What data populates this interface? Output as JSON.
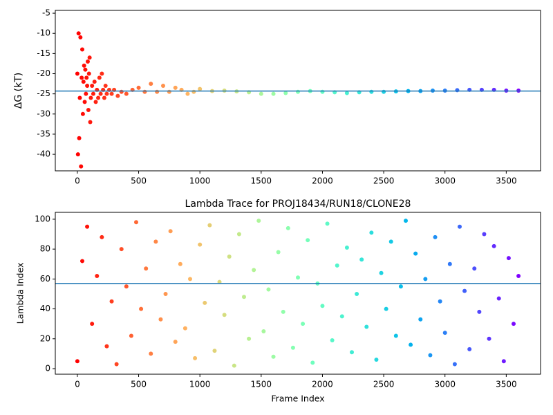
{
  "chart_data": [
    {
      "type": "scatter",
      "ylabel": "ΔG (kT)",
      "colormap": "rainbow_r",
      "x": [
        0,
        5,
        10,
        15,
        20,
        25,
        30,
        35,
        40,
        45,
        50,
        55,
        60,
        65,
        70,
        75,
        80,
        85,
        90,
        95,
        100,
        105,
        110,
        120,
        130,
        140,
        150,
        160,
        170,
        180,
        190,
        200,
        210,
        220,
        230,
        240,
        260,
        280,
        300,
        330,
        360,
        400,
        450,
        500,
        550,
        600,
        650,
        700,
        750,
        800,
        850,
        900,
        950,
        1000,
        1100,
        1200,
        1300,
        1400,
        1500,
        1600,
        1700,
        1800,
        1900,
        2000,
        2100,
        2200,
        2300,
        2400,
        2500,
        2600,
        2700,
        2800,
        2900,
        3000,
        3100,
        3200,
        3300,
        3400,
        3500,
        3600
      ],
      "values": [
        -20,
        -40,
        -10,
        -36,
        -26,
        -11,
        -43,
        -21,
        -14,
        -30,
        -22,
        -18,
        -27,
        -19,
        -25,
        -21,
        -23,
        -17,
        -29,
        -20,
        -16,
        -32,
        -26,
        -23,
        -25,
        -22,
        -27,
        -24,
        -26,
        -21,
        -25,
        -20,
        -24,
        -26,
        -23,
        -25,
        -24,
        -25,
        -24,
        -25.5,
        -24.5,
        -25,
        -24,
        -23.5,
        -24.5,
        -22.5,
        -24.5,
        -23,
        -24.5,
        -23.5,
        -24,
        -25,
        -24.5,
        -23.8,
        -24.3,
        -24.2,
        -24.4,
        -24.6,
        -25,
        -25,
        -24.8,
        -24.5,
        -24.3,
        -24.5,
        -24.6,
        -24.8,
        -24.6,
        -24.5,
        -24.5,
        -24.4,
        -24.3,
        -24.3,
        -24.2,
        -24.2,
        -24.1,
        -24,
        -24,
        -24,
        -24.2,
        -24.2
      ],
      "hline": -24.3,
      "hline_color": "#1f77b4",
      "xlim": [
        -180,
        3780
      ],
      "xticks": [
        0,
        500,
        1000,
        1500,
        2000,
        2500,
        3000,
        3500
      ],
      "ylim": [
        -44.1,
        -4.3
      ],
      "yticks": [
        -40,
        -35,
        -30,
        -25,
        -20,
        -15,
        -10,
        -5
      ]
    },
    {
      "type": "scatter",
      "title": "Lambda Trace for PROJ18434/RUN18/CLONE28",
      "xlabel": "Frame Index",
      "ylabel": "Lambda Index",
      "colormap": "rainbow_r",
      "x": [
        0,
        40,
        80,
        120,
        160,
        200,
        240,
        280,
        320,
        360,
        400,
        440,
        480,
        520,
        560,
        600,
        640,
        680,
        720,
        760,
        800,
        840,
        880,
        920,
        960,
        1000,
        1040,
        1080,
        1120,
        1160,
        1200,
        1240,
        1280,
        1320,
        1360,
        1400,
        1440,
        1480,
        1520,
        1560,
        1600,
        1640,
        1680,
        1720,
        1760,
        1800,
        1840,
        1880,
        1920,
        1960,
        2000,
        2040,
        2080,
        2120,
        2160,
        2200,
        2240,
        2280,
        2320,
        2360,
        2400,
        2440,
        2480,
        2520,
        2560,
        2600,
        2640,
        2680,
        2720,
        2760,
        2800,
        2840,
        2880,
        2920,
        2960,
        3000,
        3040,
        3080,
        3120,
        3160,
        3200,
        3240,
        3280,
        3320,
        3360,
        3400,
        3440,
        3480,
        3520,
        3560,
        3600
      ],
      "values": [
        5,
        72,
        95,
        30,
        62,
        88,
        15,
        45,
        3,
        80,
        55,
        22,
        98,
        40,
        67,
        10,
        85,
        33,
        50,
        92,
        18,
        70,
        27,
        60,
        7,
        83,
        44,
        96,
        12,
        58,
        36,
        75,
        2,
        90,
        48,
        20,
        66,
        99,
        25,
        53,
        8,
        78,
        38,
        94,
        14,
        61,
        30,
        86,
        4,
        57,
        42,
        97,
        19,
        69,
        35,
        81,
        11,
        50,
        73,
        28,
        91,
        6,
        64,
        40,
        85,
        22,
        55,
        99,
        16,
        77,
        33,
        60,
        9,
        88,
        45,
        24,
        70,
        3,
        95,
        52,
        13,
        67,
        38,
        90,
        20,
        82,
        47,
        5,
        74,
        30,
        62
      ],
      "hline": 57,
      "hline_color": "#1f77b4",
      "xlim": [
        -180,
        3780
      ],
      "xticks": [
        0,
        500,
        1000,
        1500,
        2000,
        2500,
        3000,
        3500
      ],
      "ylim": [
        -3.7,
        104.6
      ],
      "yticks": [
        0,
        20,
        40,
        60,
        80,
        100
      ]
    }
  ]
}
